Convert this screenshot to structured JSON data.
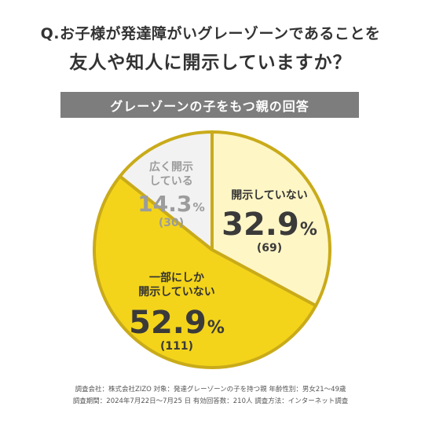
{
  "question": {
    "line1": "Q.お子様が発達障がいグレーゾーンであることを",
    "line2": "友人や知人に開示していますか？"
  },
  "banner": "グレーゾーンの子をもつ親の回答",
  "chart_data": {
    "type": "pie",
    "slices": [
      {
        "label": "開示していない",
        "value": 32.9,
        "value_text": "32.9",
        "unit": "%",
        "count": "(69)",
        "color": "#fff6c6"
      },
      {
        "label": "一部にしか開示していない",
        "value": 52.9,
        "value_text": "52.9",
        "unit": "%",
        "count": "(111)",
        "color": "#f3d41a"
      },
      {
        "label": "広く開示している",
        "value": 14.3,
        "value_text": "14.3",
        "unit": "%",
        "count": "(30)",
        "color": "#f2f2f2"
      }
    ],
    "slice_labels": {
      "not_disclosed": [
        "開示して",
        "いない"
      ],
      "partial": [
        "一部にしか",
        "開示していない"
      ],
      "wide": [
        "広く開示",
        "している"
      ]
    },
    "border_color": "#c9ab1a"
  },
  "footer": {
    "line1": "調査会社：株式会社ZIZO 対象：発達グレーゾーンの子を持つ親 年齢性別：男女21〜49歳",
    "line2": "調査期間：2024年7月22日〜7月25 日 有効回答数：210人 調査方法：インターネット調査"
  }
}
